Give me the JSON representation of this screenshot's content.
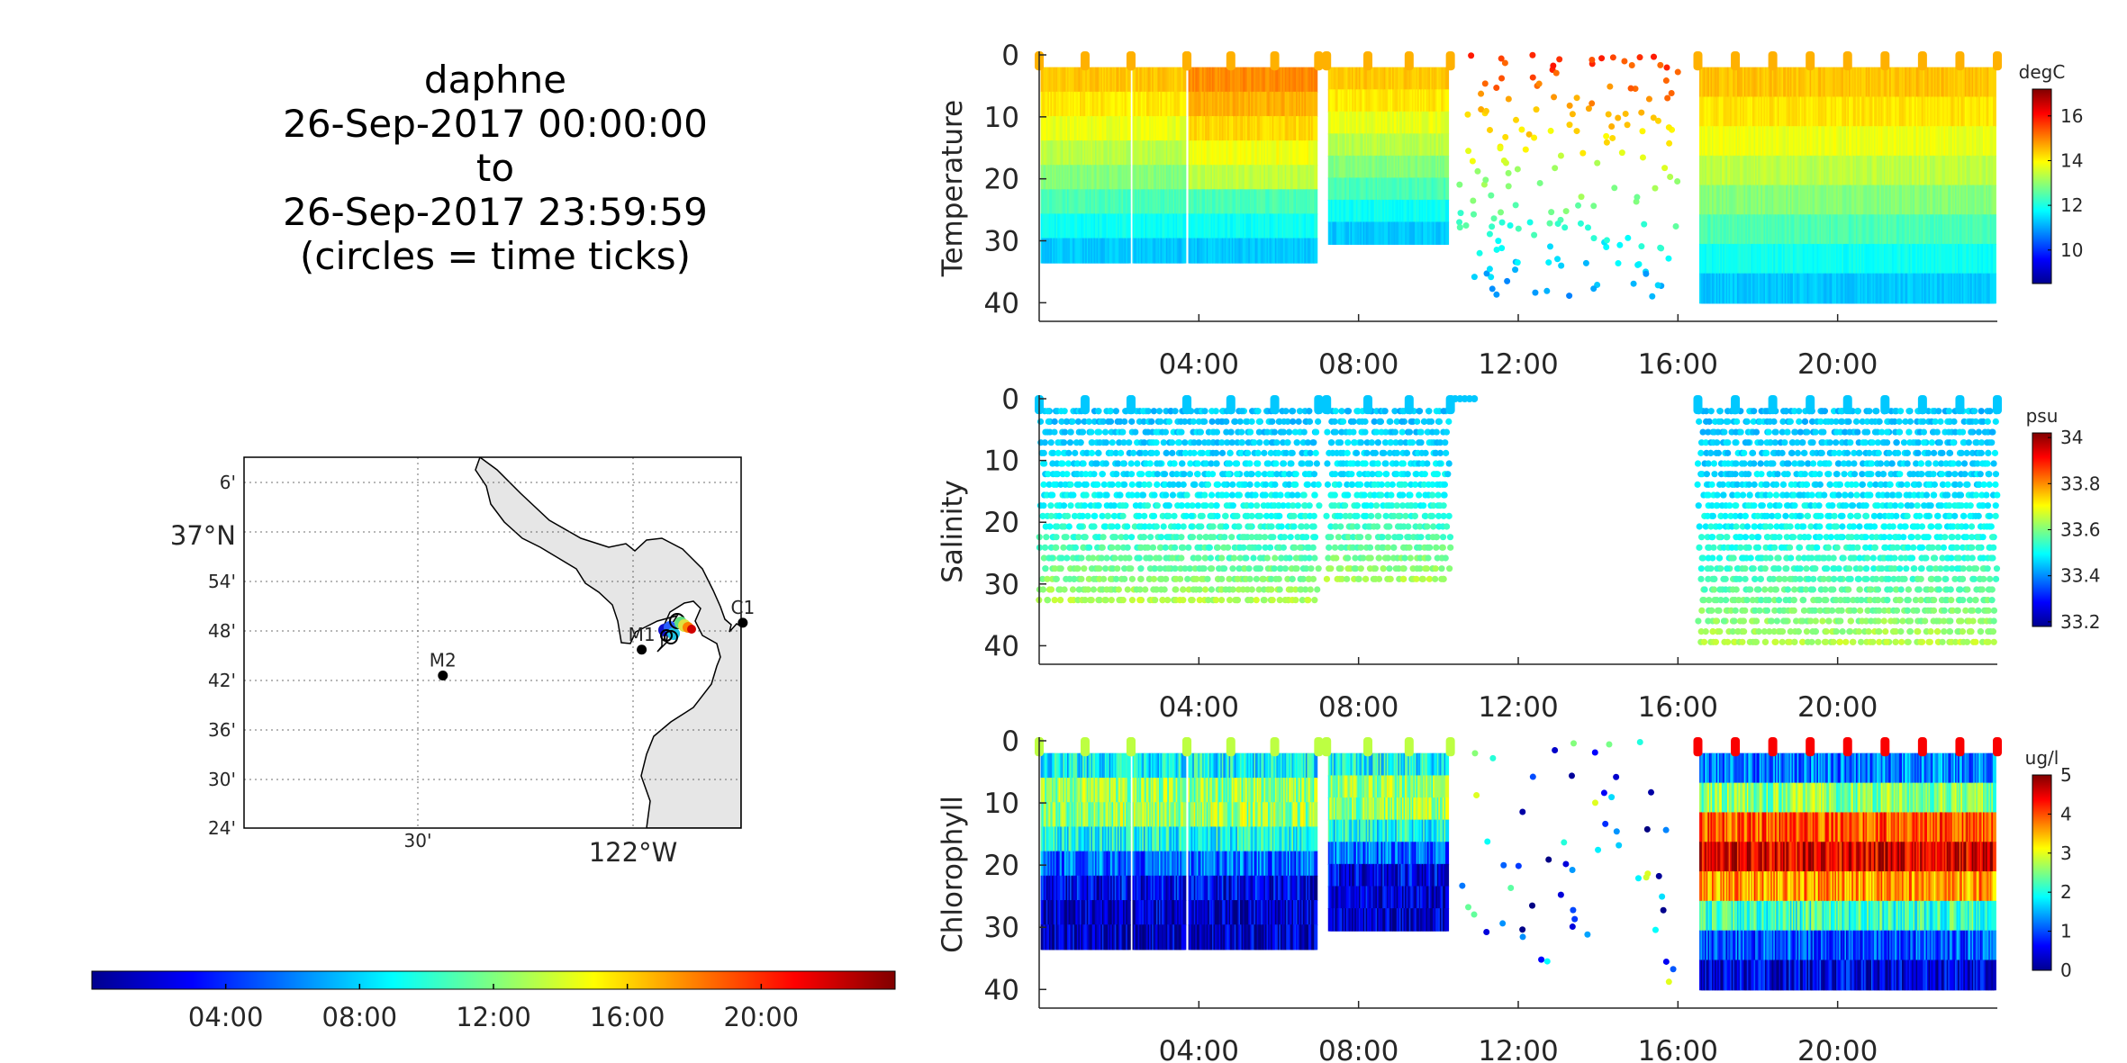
{
  "title": {
    "lines": [
      "daphne",
      "26-Sep-2017 00:00:00",
      "to",
      "26-Sep-2017 23:59:59",
      "(circles = time ticks)"
    ]
  },
  "map": {
    "lat_labels": [
      "6'",
      "37°N",
      "54'",
      "48'",
      "42'",
      "36'",
      "30'",
      "24'"
    ],
    "lon_labels": [
      "30'",
      "122°W"
    ],
    "stations": [
      {
        "name": "M2",
        "lat": 36.695,
        "lon": -122.39
      },
      {
        "name": "M1",
        "lat": 36.745,
        "lon": -122.03
      },
      {
        "name": "C1",
        "lat": 36.797,
        "lon": -121.847
      }
    ],
    "land_color": "#e6e6e6"
  },
  "time_colorbar": {
    "ticks": [
      "04:00",
      "08:00",
      "12:00",
      "16:00",
      "20:00"
    ],
    "range_hours": [
      0,
      24
    ]
  },
  "chart_data": [
    {
      "type": "scatter",
      "ylabel": "Temperature",
      "units": "degC",
      "x_ticks": [
        "04:00",
        "08:00",
        "12:00",
        "16:00",
        "20:00"
      ],
      "y_ticks": [
        "0",
        "10",
        "20",
        "30",
        "40"
      ],
      "ylim": [
        0,
        43
      ],
      "xlim_hours": [
        0,
        24
      ],
      "color_range": [
        8.5,
        17.2
      ],
      "color_ticks": [
        "16",
        "14",
        "12",
        "10"
      ],
      "color_tick_values": [
        16,
        14,
        12,
        10
      ],
      "surface_value": 14.6,
      "deep_value": 11.0,
      "deep_depth": 34,
      "gap_depth_range": [
        1,
        39
      ],
      "profile_segments": [
        [
          0,
          2.3
        ],
        [
          2.3,
          3.7
        ],
        [
          3.7,
          7.0
        ],
        [
          7.2,
          10.3
        ],
        [
          16.5,
          24
        ]
      ],
      "sparse_window": [
        10.5,
        16.0
      ]
    },
    {
      "type": "scatter",
      "ylabel": "Salinity",
      "units": "psu",
      "x_ticks": [
        "04:00",
        "08:00",
        "12:00",
        "16:00",
        "20:00"
      ],
      "y_ticks": [
        "0",
        "10",
        "20",
        "30",
        "40"
      ],
      "ylim": [
        0,
        43
      ],
      "xlim_hours": [
        0,
        24
      ],
      "color_range": [
        33.18,
        34.02
      ],
      "color_ticks": [
        "34",
        "33.8",
        "33.6",
        "33.4",
        "33.2"
      ],
      "color_tick_values": [
        34,
        33.8,
        33.6,
        33.4,
        33.2
      ],
      "surface_value": 33.45,
      "deep_value": 33.65,
      "deep_depth": 34,
      "profile_segments": [
        [
          0,
          2.3
        ],
        [
          2.3,
          3.7
        ],
        [
          3.7,
          7.0
        ],
        [
          7.2,
          10.3
        ],
        [
          16.5,
          24
        ]
      ],
      "sparse_window": [
        10.3,
        10.8
      ]
    },
    {
      "type": "scatter",
      "ylabel": "Chlorophyll",
      "units": "ug/l",
      "x_ticks": [
        "04:00",
        "08:00",
        "12:00",
        "16:00",
        "20:00"
      ],
      "y_ticks": [
        "0",
        "10",
        "20",
        "30",
        "40"
      ],
      "ylim": [
        0,
        43
      ],
      "xlim_hours": [
        0,
        24
      ],
      "color_range": [
        0,
        5
      ],
      "color_ticks": [
        "5",
        "4",
        "3",
        "2",
        "1",
        "0"
      ],
      "color_tick_values": [
        5,
        4,
        3,
        2,
        1,
        0
      ],
      "surface_value": 2.5,
      "deep_value": 0.3,
      "deep_depth": 34,
      "profile_segments": [
        [
          0,
          2.3
        ],
        [
          2.3,
          3.7
        ],
        [
          3.7,
          7.0
        ],
        [
          7.2,
          10.3
        ],
        [
          16.5,
          24
        ]
      ],
      "sparse_window": [
        10.5,
        16.0
      ]
    }
  ]
}
